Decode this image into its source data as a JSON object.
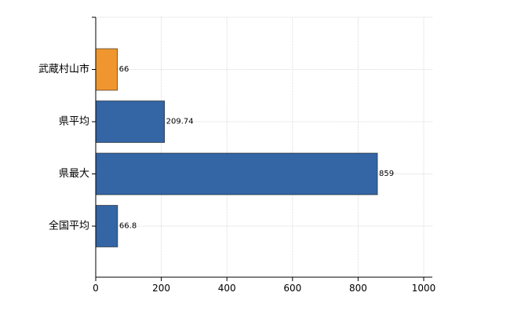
{
  "chart_data": {
    "type": "bar",
    "orientation": "horizontal",
    "categories": [
      "武蔵村山市",
      "県平均",
      "県最大",
      "全国平均"
    ],
    "values": [
      66,
      209.74,
      859,
      66.8
    ],
    "value_labels": [
      "66",
      "209.74",
      "859",
      "66.8"
    ],
    "bar_colors": [
      "#f0962e",
      "#3465a4",
      "#3465a4",
      "#3465a4"
    ],
    "xlim": [
      0,
      1000
    ],
    "xticks": [
      0,
      200,
      400,
      600,
      800,
      1000
    ],
    "grid": true
  }
}
